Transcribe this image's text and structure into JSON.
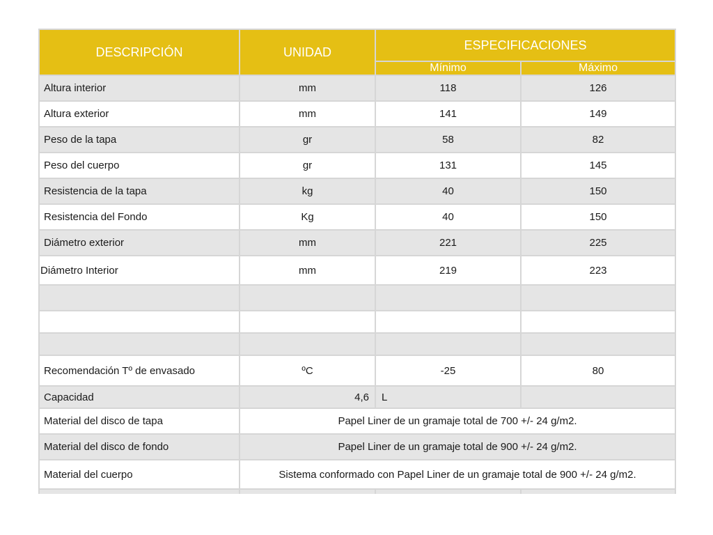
{
  "header": {
    "descripcion": "DESCRIPCIÓN",
    "unidad": "UNIDAD",
    "especificaciones": "ESPECIFICACIONES",
    "minimo": "Mínimo",
    "maximo": "Máximo"
  },
  "rows": [
    {
      "desc": "Altura interior",
      "unit": "mm",
      "min": "118",
      "max": "126"
    },
    {
      "desc": "Altura exterior",
      "unit": "mm",
      "min": "141",
      "max": "149"
    },
    {
      "desc": "Peso de la tapa",
      "unit": "gr",
      "min": "58",
      "max": "82"
    },
    {
      "desc": "Peso del cuerpo",
      "unit": "gr",
      "min": "131",
      "max": "145"
    },
    {
      "desc": "Resistencia de la tapa",
      "unit": "kg",
      "min": "40",
      "max": "150"
    },
    {
      "desc": "Resistencia del Fondo",
      "unit": "Kg",
      "min": "40",
      "max": "150"
    },
    {
      "desc": "Diámetro exterior",
      "unit": "mm",
      "min": "221",
      "max": "225"
    },
    {
      "desc": "Diámetro Interior",
      "unit": "mm",
      "min": "219",
      "max": "223"
    }
  ],
  "temperatura": {
    "desc": "Recomendación Tº de envasado",
    "unit": "ºC",
    "min": "-25",
    "max": "80"
  },
  "capacidad": {
    "desc": "Capacidad",
    "value": "4,6",
    "unit": "L"
  },
  "materiales": [
    {
      "desc": "Material del disco de tapa",
      "value": "Papel Liner de un gramaje total de 700 +/- 24 g/m2."
    },
    {
      "desc": "Material del disco de fondo",
      "value": "Papel Liner de un gramaje total de 900 +/- 24 g/m2."
    },
    {
      "desc": "Material del cuerpo",
      "value": "Sistema conformado con Papel Liner de un gramaje total de 900 +/- 24 g/m2."
    }
  ],
  "colors": {
    "header": "#e5bf14",
    "shade": "#e5e5e5",
    "border": "#d6d6d6"
  }
}
